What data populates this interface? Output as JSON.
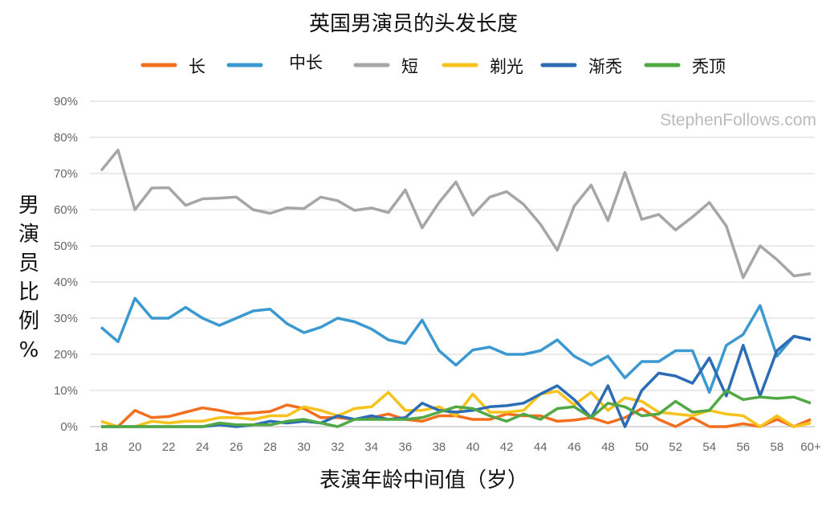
{
  "chart_data": {
    "type": "line",
    "title": "英国男演员的头发长度",
    "xlabel": "表演年龄中间值（岁）",
    "ylabel": "男演员比例%",
    "watermark": "StephenFollows.com",
    "ylim": [
      0,
      90
    ],
    "yticks": [
      "0%",
      "10%",
      "20%",
      "30%",
      "40%",
      "50%",
      "60%",
      "70%",
      "80%",
      "90%"
    ],
    "grid": true,
    "legend_position": "top",
    "x": [
      "18",
      "19",
      "20",
      "21",
      "22",
      "23",
      "24",
      "25",
      "26",
      "27",
      "28",
      "29",
      "30",
      "31",
      "32",
      "33",
      "34",
      "35",
      "36",
      "37",
      "38",
      "39",
      "40",
      "41",
      "42",
      "43",
      "44",
      "45",
      "46",
      "47",
      "48",
      "49",
      "50",
      "51",
      "52",
      "53",
      "54",
      "55",
      "56",
      "57",
      "58",
      "59",
      "60+"
    ],
    "xticks": [
      "18",
      "20",
      "22",
      "24",
      "26",
      "28",
      "30",
      "32",
      "34",
      "36",
      "38",
      "40",
      "42",
      "44",
      "46",
      "48",
      "50",
      "52",
      "54",
      "56",
      "58",
      "60+"
    ],
    "series": [
      {
        "name": "长",
        "color": "#f26f1f",
        "values": [
          0,
          0,
          4.5,
          2.5,
          2.8,
          4,
          5.2,
          4.5,
          3.5,
          3.8,
          4.2,
          6,
          5,
          2.5,
          2.5,
          2,
          2.5,
          3.5,
          2,
          1.5,
          3,
          3,
          2,
          2,
          3.5,
          3,
          3,
          1.5,
          1.8,
          2.5,
          1,
          2.5,
          5,
          2,
          0,
          2.5,
          0,
          0,
          0.8,
          0,
          2,
          0,
          2
        ]
      },
      {
        "name": "中长",
        "color": "#3b99d0",
        "values": [
          27.5,
          23.5,
          35.5,
          30,
          30,
          33,
          30,
          28,
          30,
          32,
          32.5,
          28.5,
          26,
          27.5,
          30,
          29,
          27,
          24,
          23,
          29.5,
          21,
          17,
          21.2,
          22,
          20,
          20,
          21,
          24,
          19.5,
          17,
          19.5,
          13.5,
          18,
          18,
          21,
          21,
          9.5,
          22.5,
          25.5,
          33.5,
          19.5,
          25,
          24
        ]
      },
      {
        "name": "短",
        "color": "#a6a6a6",
        "values": [
          70.8,
          76.5,
          60,
          66,
          66.1,
          61.2,
          63,
          63.2,
          63.5,
          60,
          59,
          60.5,
          60.3,
          63.5,
          62.5,
          59.8,
          60.5,
          59.2,
          65.5,
          55,
          62,
          67.7,
          58.5,
          63.5,
          65,
          61.5,
          56,
          48.8,
          61,
          66.8,
          57,
          70.3,
          57.3,
          58.7,
          54.4,
          58,
          62,
          55.5,
          41.2,
          50,
          46.2,
          41.7,
          42.3
        ]
      },
      {
        "name": "剃光",
        "color": "#f7c21c",
        "values": [
          1.5,
          0,
          0,
          1.5,
          1,
          1.5,
          1.5,
          2.5,
          2.5,
          2,
          3,
          3,
          5.5,
          4.5,
          3,
          5,
          5.5,
          9.5,
          4.5,
          4.5,
          5.5,
          3,
          9,
          4,
          4,
          4.5,
          9,
          9.8,
          6,
          9.5,
          4.5,
          8,
          7,
          4,
          3.5,
          3,
          4.5,
          3.5,
          3,
          0,
          3,
          0,
          1
        ]
      },
      {
        "name": "渐秃",
        "color": "#2b6cb5",
        "values": [
          0,
          0,
          0,
          0,
          0,
          0,
          0,
          0.5,
          0,
          0.5,
          1.5,
          1,
          1.5,
          1,
          3,
          2,
          3,
          2,
          2.5,
          6.5,
          4.5,
          4,
          4.5,
          5.5,
          5.8,
          6.5,
          9,
          11.3,
          7.5,
          2.5,
          11.3,
          0,
          10,
          14.8,
          14,
          12,
          19,
          8.5,
          22.5,
          8.5,
          21,
          25,
          24
        ]
      },
      {
        "name": "秃顶",
        "color": "#52a845",
        "values": [
          0,
          0,
          0,
          0,
          0,
          0,
          0,
          1,
          0.5,
          0.5,
          0.5,
          1.5,
          2,
          1,
          0,
          2,
          2,
          2,
          2,
          2.5,
          4,
          5.5,
          5,
          3,
          1.5,
          3.5,
          2,
          5,
          5.5,
          2.5,
          6.5,
          5.5,
          3,
          3.5,
          7,
          4,
          4.5,
          10,
          7.5,
          8.2,
          7.8,
          8.2,
          6.5
        ]
      }
    ]
  }
}
